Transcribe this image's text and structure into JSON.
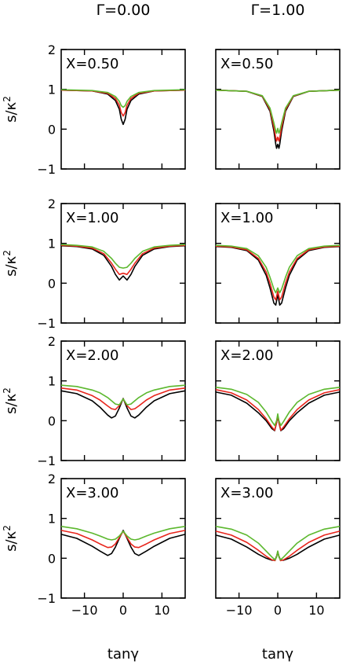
{
  "chart_data": {
    "type": "line",
    "columns": [
      "Γ=0.00",
      "Γ=1.00"
    ],
    "rows": [
      "X=0.50",
      "X=1.00",
      "X=2.00",
      "X=3.00"
    ],
    "xlabel": "tanγ",
    "ylabel": "s/κ",
    "ylabel_exponent": "2",
    "xlim": [
      -16,
      16
    ],
    "ylim": [
      -1,
      2
    ],
    "xticks": [
      -10,
      0,
      10
    ],
    "xtick_labels": [
      "−10",
      "0",
      "10"
    ],
    "yticks": [
      -1,
      0,
      1,
      2
    ],
    "ytick_labels": [
      "−1",
      "0",
      "1",
      "2"
    ],
    "series_colors": [
      "#000000",
      "#e8251c",
      "#5cb82e"
    ],
    "panels": [
      {
        "row": 0,
        "col": 0,
        "label": "X=0.50",
        "series": [
          {
            "color": "#000000",
            "x": [
              -16,
              -8,
              -4,
              -2,
              -1,
              -0.5,
              0,
              0.5,
              1,
              2,
              4,
              8,
              16
            ],
            "y": [
              0.98,
              0.96,
              0.88,
              0.72,
              0.5,
              0.25,
              0.12,
              0.25,
              0.5,
              0.72,
              0.88,
              0.96,
              0.98
            ]
          },
          {
            "color": "#e8251c",
            "x": [
              -16,
              -8,
              -4,
              -2,
              -1,
              -0.5,
              0,
              0.5,
              1,
              2,
              4,
              8,
              16
            ],
            "y": [
              0.98,
              0.96,
              0.9,
              0.77,
              0.6,
              0.42,
              0.33,
              0.42,
              0.6,
              0.77,
              0.9,
              0.96,
              0.98
            ]
          },
          {
            "color": "#5cb82e",
            "x": [
              -16,
              -8,
              -4,
              -2,
              -1,
              -0.5,
              0,
              0.5,
              1,
              2,
              4,
              8,
              16
            ],
            "y": [
              0.99,
              0.97,
              0.92,
              0.82,
              0.7,
              0.59,
              0.55,
              0.59,
              0.7,
              0.82,
              0.92,
              0.97,
              0.99
            ]
          }
        ]
      },
      {
        "row": 0,
        "col": 1,
        "label": "X=0.50",
        "series": [
          {
            "color": "#000000",
            "x": [
              -16,
              -8,
              -4,
              -2,
              -1,
              -0.5,
              -0.3,
              0,
              0.3,
              0.5,
              1,
              2,
              4,
              8,
              16
            ],
            "y": [
              0.98,
              0.95,
              0.82,
              0.45,
              -0.05,
              -0.38,
              -0.48,
              -0.38,
              -0.48,
              -0.38,
              -0.05,
              0.45,
              0.82,
              0.95,
              0.98
            ]
          },
          {
            "color": "#e8251c",
            "x": [
              -16,
              -8,
              -4,
              -2,
              -1,
              -0.5,
              -0.3,
              0,
              0.3,
              0.5,
              1,
              2,
              4,
              8,
              16
            ],
            "y": [
              0.98,
              0.95,
              0.83,
              0.49,
              0.05,
              -0.22,
              -0.3,
              -0.2,
              -0.3,
              -0.22,
              0.05,
              0.49,
              0.83,
              0.95,
              0.98
            ]
          },
          {
            "color": "#5cb82e",
            "x": [
              -16,
              -8,
              -4,
              -2,
              -1,
              -0.5,
              -0.3,
              0,
              0.3,
              0.5,
              1,
              2,
              4,
              8,
              16
            ],
            "y": [
              0.98,
              0.95,
              0.84,
              0.53,
              0.15,
              -0.05,
              -0.1,
              0.02,
              -0.1,
              -0.05,
              0.15,
              0.53,
              0.84,
              0.95,
              0.98
            ]
          }
        ]
      },
      {
        "row": 1,
        "col": 0,
        "label": "X=1.00",
        "series": [
          {
            "color": "#000000",
            "x": [
              -16,
              -12,
              -8,
              -5,
              -3,
              -2,
              -1,
              0,
              1,
              2,
              3,
              5,
              8,
              12,
              16
            ],
            "y": [
              0.94,
              0.92,
              0.86,
              0.7,
              0.42,
              0.22,
              0.08,
              0.18,
              0.08,
              0.22,
              0.42,
              0.7,
              0.86,
              0.92,
              0.94
            ]
          },
          {
            "color": "#e8251c",
            "x": [
              -16,
              -12,
              -8,
              -5,
              -3,
              -2,
              -1,
              0,
              1,
              2,
              3,
              5,
              8,
              12,
              16
            ],
            "y": [
              0.95,
              0.93,
              0.88,
              0.74,
              0.5,
              0.35,
              0.22,
              0.25,
              0.22,
              0.35,
              0.5,
              0.74,
              0.88,
              0.93,
              0.95
            ]
          },
          {
            "color": "#5cb82e",
            "x": [
              -16,
              -12,
              -8,
              -5,
              -3,
              -2,
              -1,
              0,
              1,
              2,
              3,
              5,
              8,
              12,
              16
            ],
            "y": [
              0.97,
              0.95,
              0.91,
              0.8,
              0.62,
              0.5,
              0.4,
              0.38,
              0.4,
              0.5,
              0.62,
              0.8,
              0.91,
              0.95,
              0.97
            ]
          }
        ]
      },
      {
        "row": 1,
        "col": 1,
        "label": "X=1.00",
        "series": [
          {
            "color": "#000000",
            "x": [
              -16,
              -12,
              -8,
              -5,
              -3,
              -2,
              -1,
              -0.5,
              0,
              0.5,
              1,
              2,
              3,
              5,
              8,
              12,
              16
            ],
            "y": [
              0.92,
              0.9,
              0.82,
              0.58,
              0.2,
              -0.12,
              -0.5,
              -0.55,
              -0.28,
              -0.55,
              -0.5,
              -0.12,
              0.2,
              0.58,
              0.82,
              0.9,
              0.92
            ]
          },
          {
            "color": "#e8251c",
            "x": [
              -16,
              -12,
              -8,
              -5,
              -3,
              -2,
              -1,
              -0.5,
              0,
              0.5,
              1,
              2,
              3,
              5,
              8,
              12,
              16
            ],
            "y": [
              0.93,
              0.91,
              0.84,
              0.62,
              0.28,
              0.0,
              -0.35,
              -0.42,
              -0.2,
              -0.42,
              -0.35,
              0.0,
              0.28,
              0.62,
              0.84,
              0.91,
              0.93
            ]
          },
          {
            "color": "#5cb82e",
            "x": [
              -16,
              -12,
              -8,
              -5,
              -3,
              -2,
              -1,
              -0.5,
              0,
              0.5,
              1,
              2,
              3,
              5,
              8,
              12,
              16
            ],
            "y": [
              0.95,
              0.93,
              0.87,
              0.69,
              0.4,
              0.15,
              -0.15,
              -0.24,
              -0.12,
              -0.24,
              -0.15,
              0.15,
              0.4,
              0.69,
              0.87,
              0.93,
              0.95
            ]
          }
        ]
      },
      {
        "row": 2,
        "col": 0,
        "label": "X=2.00",
        "series": [
          {
            "color": "#000000",
            "x": [
              -16,
              -12,
              -8,
              -6,
              -4,
              -3,
              -2,
              -1,
              0,
              1,
              2,
              3,
              4,
              6,
              8,
              12,
              16
            ],
            "y": [
              0.75,
              0.68,
              0.5,
              0.34,
              0.14,
              0.07,
              0.12,
              0.32,
              0.56,
              0.32,
              0.12,
              0.07,
              0.14,
              0.34,
              0.5,
              0.68,
              0.75
            ]
          },
          {
            "color": "#e8251c",
            "x": [
              -16,
              -12,
              -8,
              -6,
              -4,
              -3,
              -2,
              -1,
              0,
              1,
              2,
              3,
              4,
              6,
              8,
              12,
              16
            ],
            "y": [
              0.82,
              0.77,
              0.63,
              0.52,
              0.37,
              0.3,
              0.28,
              0.38,
              0.55,
              0.38,
              0.28,
              0.3,
              0.37,
              0.52,
              0.63,
              0.77,
              0.82
            ]
          },
          {
            "color": "#5cb82e",
            "x": [
              -16,
              -12,
              -8,
              -6,
              -4,
              -3,
              -2,
              -1,
              0,
              1,
              2,
              3,
              4,
              6,
              8,
              12,
              16
            ],
            "y": [
              0.89,
              0.86,
              0.77,
              0.7,
              0.58,
              0.5,
              0.42,
              0.4,
              0.55,
              0.4,
              0.42,
              0.5,
              0.58,
              0.7,
              0.77,
              0.86,
              0.89
            ]
          }
        ]
      },
      {
        "row": 2,
        "col": 1,
        "label": "X=2.00",
        "series": [
          {
            "color": "#000000",
            "x": [
              -16,
              -12,
              -8,
              -5,
              -3,
              -1.5,
              -0.8,
              -0.3,
              0,
              0.3,
              0.8,
              1.5,
              3,
              5,
              8,
              12,
              16
            ],
            "y": [
              0.72,
              0.64,
              0.44,
              0.2,
              0.0,
              -0.2,
              -0.25,
              -0.05,
              0.12,
              -0.05,
              -0.25,
              -0.2,
              0.0,
              0.2,
              0.44,
              0.64,
              0.72
            ]
          },
          {
            "color": "#e8251c",
            "x": [
              -16,
              -12,
              -8,
              -5,
              -3,
              -1.5,
              -0.8,
              -0.3,
              0,
              0.3,
              0.8,
              1.5,
              3,
              5,
              8,
              12,
              16
            ],
            "y": [
              0.78,
              0.7,
              0.52,
              0.28,
              0.05,
              -0.16,
              -0.24,
              -0.04,
              0.13,
              -0.04,
              -0.24,
              -0.16,
              0.05,
              0.28,
              0.52,
              0.7,
              0.78
            ]
          },
          {
            "color": "#5cb82e",
            "x": [
              -16,
              -12,
              -8,
              -5,
              -3,
              -1.5,
              -0.8,
              -0.3,
              0,
              0.3,
              0.8,
              1.5,
              3,
              5,
              8,
              12,
              16
            ],
            "y": [
              0.84,
              0.79,
              0.66,
              0.46,
              0.22,
              -0.02,
              -0.12,
              0.0,
              0.17,
              0.0,
              -0.12,
              -0.02,
              0.22,
              0.46,
              0.66,
              0.79,
              0.84
            ]
          }
        ]
      },
      {
        "row": 3,
        "col": 0,
        "label": "X=3.00",
        "series": [
          {
            "color": "#000000",
            "x": [
              -16,
              -12,
              -8,
              -6,
              -4,
              -3,
              -2,
              -1,
              0,
              1,
              2,
              3,
              4,
              6,
              8,
              12,
              16
            ],
            "y": [
              0.6,
              0.5,
              0.3,
              0.18,
              0.07,
              0.12,
              0.28,
              0.5,
              0.7,
              0.5,
              0.28,
              0.12,
              0.07,
              0.18,
              0.3,
              0.5,
              0.6
            ]
          },
          {
            "color": "#e8251c",
            "x": [
              -16,
              -12,
              -8,
              -6,
              -4,
              -3,
              -2,
              -1,
              0,
              1,
              2,
              3,
              4,
              6,
              8,
              12,
              16
            ],
            "y": [
              0.7,
              0.62,
              0.46,
              0.36,
              0.27,
              0.28,
              0.36,
              0.52,
              0.68,
              0.52,
              0.36,
              0.28,
              0.27,
              0.36,
              0.46,
              0.62,
              0.7
            ]
          },
          {
            "color": "#5cb82e",
            "x": [
              -16,
              -12,
              -8,
              -6,
              -4,
              -3,
              -2,
              -1,
              0,
              1,
              2,
              3,
              4,
              6,
              8,
              12,
              16
            ],
            "y": [
              0.8,
              0.74,
              0.63,
              0.56,
              0.48,
              0.46,
              0.48,
              0.56,
              0.68,
              0.56,
              0.48,
              0.46,
              0.48,
              0.56,
              0.63,
              0.74,
              0.8
            ]
          }
        ]
      },
      {
        "row": 3,
        "col": 1,
        "label": "X=3.00",
        "series": [
          {
            "color": "#000000",
            "x": [
              -16,
              -12,
              -8,
              -5,
              -3,
              -1.5,
              -0.7,
              -0.3,
              0,
              0.3,
              0.7,
              1.5,
              3,
              5,
              8,
              12,
              16
            ],
            "y": [
              0.58,
              0.48,
              0.28,
              0.1,
              0.0,
              -0.05,
              -0.04,
              0.05,
              0.16,
              0.05,
              -0.04,
              -0.05,
              0.0,
              0.1,
              0.28,
              0.48,
              0.58
            ]
          },
          {
            "color": "#e8251c",
            "x": [
              -16,
              -12,
              -8,
              -5,
              -3,
              -1.5,
              -0.7,
              -0.3,
              0,
              0.3,
              0.7,
              1.5,
              3,
              5,
              8,
              12,
              16
            ],
            "y": [
              0.68,
              0.58,
              0.4,
              0.2,
              0.05,
              -0.04,
              -0.06,
              0.04,
              0.17,
              0.04,
              -0.06,
              -0.04,
              0.05,
              0.2,
              0.4,
              0.58,
              0.68
            ]
          },
          {
            "color": "#5cb82e",
            "x": [
              -16,
              -12,
              -8,
              -5,
              -3,
              -1.5,
              -0.7,
              -0.3,
              0,
              0.3,
              0.7,
              1.5,
              3,
              5,
              8,
              12,
              16
            ],
            "y": [
              0.8,
              0.73,
              0.58,
              0.38,
              0.18,
              0.03,
              -0.04,
              0.03,
              0.18,
              0.03,
              -0.04,
              0.03,
              0.18,
              0.38,
              0.58,
              0.73,
              0.8
            ]
          }
        ]
      }
    ]
  }
}
